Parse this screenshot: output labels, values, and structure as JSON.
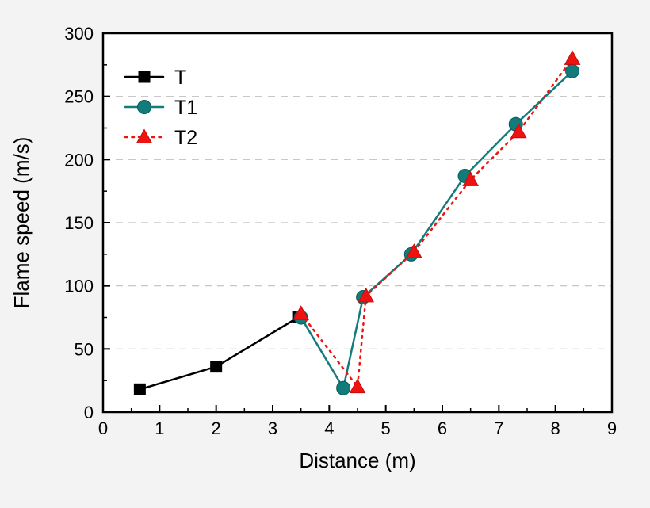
{
  "chart_data": {
    "type": "line",
    "title": "",
    "xlabel": "Distance (m)",
    "ylabel": "Flame speed (m/s)",
    "xlim": [
      0,
      9
    ],
    "ylim": [
      0,
      300
    ],
    "x_ticks": [
      0,
      1,
      2,
      3,
      4,
      5,
      6,
      7,
      8,
      9
    ],
    "y_ticks": [
      0,
      50,
      100,
      150,
      200,
      250,
      300
    ],
    "y_minor_step": 25,
    "x_minor_step": 0.5,
    "grid": "horizontal-dashed",
    "legend_position": "top-left",
    "series": [
      {
        "name": "T",
        "color": "#000000",
        "marker": "square",
        "line_style": "solid",
        "points": [
          [
            0.65,
            18
          ],
          [
            2.0,
            36
          ],
          [
            3.45,
            75
          ]
        ]
      },
      {
        "name": "T1",
        "color": "#117c7a",
        "marker": "circle",
        "line_style": "solid",
        "points": [
          [
            3.5,
            75
          ],
          [
            4.25,
            19
          ],
          [
            4.6,
            91
          ],
          [
            5.45,
            125
          ],
          [
            6.4,
            187
          ],
          [
            7.3,
            228
          ],
          [
            8.3,
            270
          ]
        ]
      },
      {
        "name": "T2",
        "color": "#ee1311",
        "marker": "triangle",
        "line_style": "dotted",
        "points": [
          [
            3.5,
            78
          ],
          [
            4.5,
            20
          ],
          [
            4.65,
            92
          ],
          [
            5.5,
            127
          ],
          [
            6.5,
            184
          ],
          [
            7.35,
            222
          ],
          [
            8.3,
            280
          ]
        ]
      }
    ]
  },
  "colors": {
    "background": "#f4f3f3",
    "plot_background": "#ffffff",
    "grid": "#c0c0c0",
    "axis": "#000000"
  }
}
